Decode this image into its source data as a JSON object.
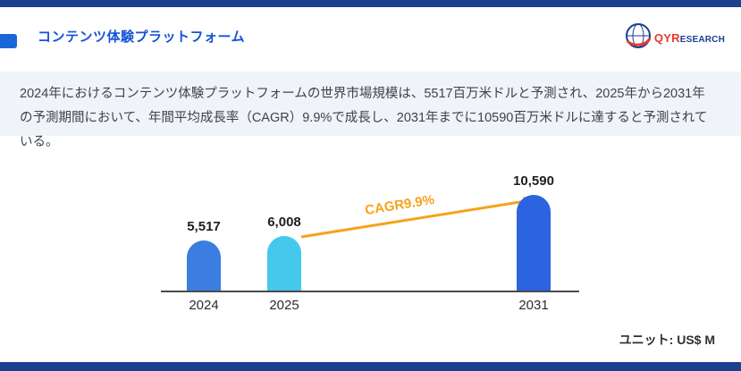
{
  "header": {
    "title": "コンテンツ体験プラットフォーム",
    "logo": {
      "icon": "qyresearch-globe-icon",
      "text_primary": "QYR",
      "text_secondary": "ESEARCH"
    }
  },
  "intro": {
    "text": "2024年におけるコンテンツ体験プラットフォームの世界市場規模は、5517百万米ドルと予測され、2025年から2031年の予測期間において、年間平均成長率（CAGR）9.9%で成長し、2031年までに10590百万米ドルに達すると予測されている。"
  },
  "chart_data": {
    "type": "bar",
    "title": "",
    "xlabel": "",
    "ylabel": "",
    "categories": [
      "2024",
      "2025",
      "2031"
    ],
    "values": [
      5517,
      6008,
      10590
    ],
    "value_labels": [
      "5,517",
      "6,008",
      "10,590"
    ],
    "bar_colors": [
      "#3b7de0",
      "#44c8ec",
      "#2b63e0"
    ],
    "annotation": "CAGR9.9%",
    "annotation_color": "#f7a21b",
    "unit_label": "ユニット: US$ M",
    "ylim": [
      0,
      12000
    ],
    "grid": false,
    "legend": "none"
  },
  "colors": {
    "strip": "#1c3f8e",
    "accent": "#1b66d6",
    "title": "#1453d6",
    "band_bg": "#f0f3f7",
    "arrow": "#f7a21b"
  }
}
